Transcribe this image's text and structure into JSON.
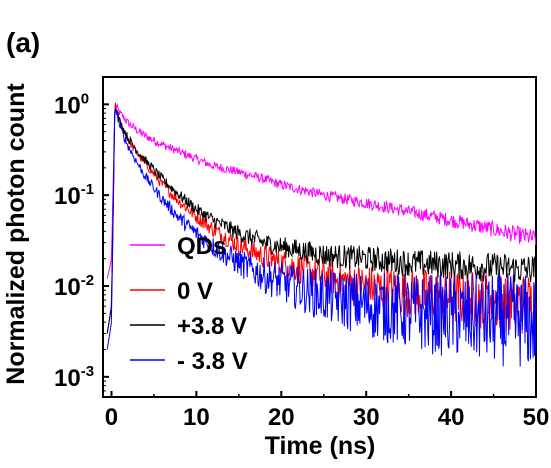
{
  "panel_label": "(a)",
  "chart_data": {
    "type": "line",
    "xlabel": "Time (ns)",
    "ylabel": "Normalized photon count",
    "xlim": [
      -1,
      50
    ],
    "ylim": [
      0.0006,
      2.0
    ],
    "y_scale": "log",
    "grid": false,
    "legend_position": "bottom-left",
    "x_ticks": [
      "0",
      "10",
      "20",
      "30",
      "40",
      "50"
    ],
    "x_tick_values": [
      0,
      10,
      20,
      30,
      40,
      50
    ],
    "y_ticks": [
      {
        "base": "10",
        "exp": "0",
        "value": 1
      },
      {
        "base": "10",
        "exp": "-1",
        "value": 0.1
      },
      {
        "base": "10",
        "exp": "-2",
        "value": 0.01
      },
      {
        "base": "10",
        "exp": "-3",
        "value": 0.001
      }
    ],
    "series": [
      {
        "name": "QDs",
        "color": "#ff00ff",
        "x": [
          -0.5,
          0,
          0.4,
          1,
          2,
          3,
          4,
          5,
          6,
          8,
          10,
          12,
          15,
          18,
          20,
          25,
          30,
          35,
          40,
          45,
          50
        ],
        "y": [
          0.012,
          0.02,
          1.0,
          0.8,
          0.62,
          0.52,
          0.45,
          0.4,
          0.36,
          0.3,
          0.25,
          0.21,
          0.18,
          0.15,
          0.13,
          0.1,
          0.082,
          0.066,
          0.053,
          0.042,
          0.033
        ]
      },
      {
        "name": "0 V",
        "color": "#ff0000",
        "x": [
          -0.5,
          0,
          0.4,
          1,
          2,
          3,
          4,
          5,
          6,
          8,
          10,
          12,
          15,
          18,
          20,
          25,
          30,
          35,
          40,
          45,
          50
        ],
        "y": [
          0.003,
          0.006,
          1.0,
          0.62,
          0.4,
          0.29,
          0.22,
          0.17,
          0.13,
          0.085,
          0.058,
          0.042,
          0.028,
          0.021,
          0.018,
          0.013,
          0.01,
          0.0085,
          0.0075,
          0.0068,
          0.0062
        ]
      },
      {
        "name": "+3.8 V",
        "color": "#000000",
        "x": [
          -0.5,
          0,
          0.4,
          1,
          2,
          3,
          4,
          5,
          6,
          8,
          10,
          12,
          15,
          18,
          20,
          25,
          30,
          35,
          40,
          45,
          50
        ],
        "y": [
          0.003,
          0.006,
          1.0,
          0.64,
          0.42,
          0.31,
          0.24,
          0.19,
          0.15,
          0.1,
          0.07,
          0.053,
          0.038,
          0.03,
          0.027,
          0.022,
          0.02,
          0.018,
          0.017,
          0.016,
          0.015
        ]
      },
      {
        "name": "- 3.8 V",
        "color": "#0000ff",
        "x": [
          -0.5,
          0,
          0.4,
          1,
          2,
          3,
          4,
          5,
          6,
          8,
          10,
          12,
          15,
          18,
          20,
          25,
          30,
          35,
          40,
          45,
          50
        ],
        "y": [
          0.002,
          0.004,
          1.0,
          0.56,
          0.34,
          0.23,
          0.16,
          0.12,
          0.09,
          0.056,
          0.038,
          0.027,
          0.018,
          0.013,
          0.011,
          0.0078,
          0.0062,
          0.0052,
          0.0047,
          0.0043,
          0.004
        ]
      }
    ]
  }
}
